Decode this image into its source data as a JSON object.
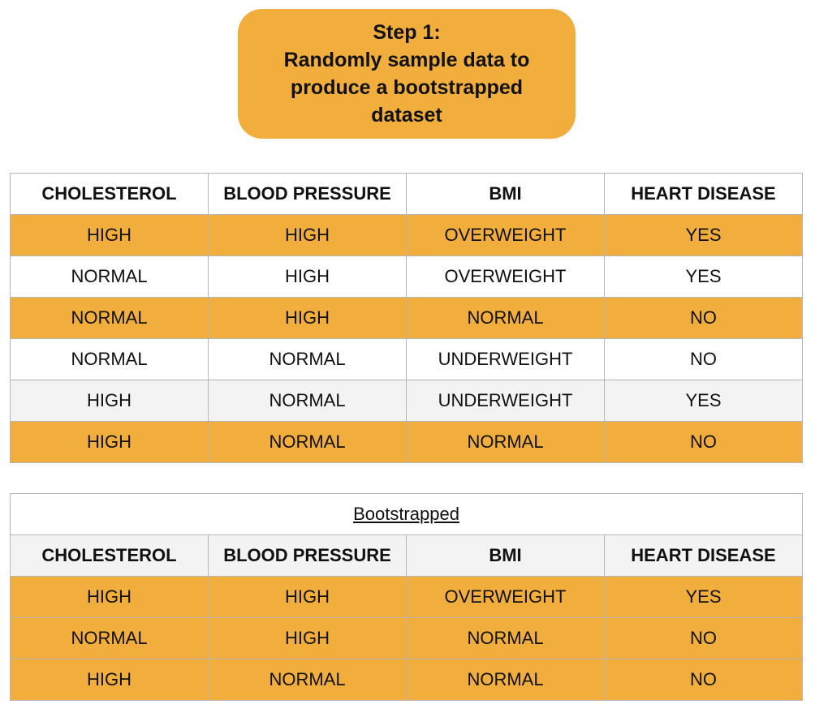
{
  "step": {
    "line1": "Step 1:",
    "line2": "Randomly sample data to",
    "line3": "produce a bootstrapped",
    "line4": "dataset"
  },
  "colors": {
    "accent": "#f2ae3d",
    "row_white": "#ffffff",
    "row_gray": "#f3f3f3",
    "border": "#b5b5b5"
  },
  "original": {
    "headers": [
      "CHOLESTEROL",
      "BLOOD PRESSURE",
      "BMI",
      "HEART DISEASE"
    ],
    "rows": [
      [
        "HIGH",
        "HIGH",
        "OVERWEIGHT",
        "YES"
      ],
      [
        "NORMAL",
        "HIGH",
        "OVERWEIGHT",
        "YES"
      ],
      [
        "NORMAL",
        "HIGH",
        "NORMAL",
        "NO"
      ],
      [
        "NORMAL",
        "NORMAL",
        "UNDERWEIGHT",
        "NO"
      ],
      [
        "HIGH",
        "NORMAL",
        "UNDERWEIGHT",
        "YES"
      ],
      [
        "HIGH",
        "NORMAL",
        "NORMAL",
        "NO"
      ]
    ]
  },
  "bootstrapped": {
    "caption": "Bootstrapped",
    "headers": [
      "CHOLESTEROL",
      "BLOOD PRESSURE",
      "BMI",
      "HEART DISEASE"
    ],
    "rows": [
      [
        "HIGH",
        "HIGH",
        "OVERWEIGHT",
        "YES"
      ],
      [
        "NORMAL",
        "HIGH",
        "NORMAL",
        "NO"
      ],
      [
        "HIGH",
        "NORMAL",
        "NORMAL",
        "NO"
      ]
    ]
  }
}
